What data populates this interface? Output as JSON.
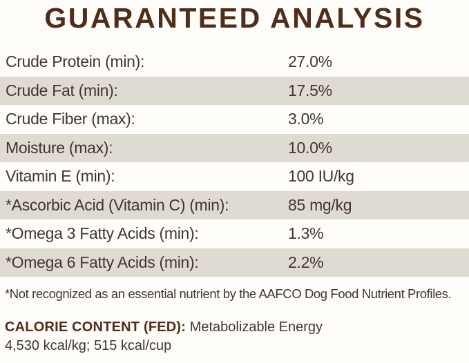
{
  "title": "GUARANTEED ANALYSIS",
  "colors": {
    "heading_brown": "#4f2d1a",
    "body_text": "#42362e",
    "shaded_row_bg": "#dfdad2",
    "page_bg": "#fffdfa"
  },
  "analysis_table": {
    "rows": [
      {
        "label": "Crude Protein (min):",
        "value": "27.0%",
        "shaded": false
      },
      {
        "label": "Crude Fat (min):",
        "value": "17.5%",
        "shaded": true
      },
      {
        "label": "Crude Fiber (max):",
        "value": "3.0%",
        "shaded": false
      },
      {
        "label": "Moisture (max):",
        "value": "10.0%",
        "shaded": true
      },
      {
        "label": "Vitamin E (min):",
        "value": "100 IU/kg",
        "shaded": false
      },
      {
        "label": "*Ascorbic Acid (Vitamin C) (min):",
        "value": "85 mg/kg",
        "shaded": true
      },
      {
        "label": "*Omega 3 Fatty Acids (min):",
        "value": "1.3%",
        "shaded": false
      },
      {
        "label": "*Omega 6 Fatty Acids (min):",
        "value": "2.2%",
        "shaded": true
      }
    ]
  },
  "footnote": "*Not recognized as an essential nutrient by the AAFCO Dog Food Nutrient Profiles.",
  "calorie_content": {
    "heading": "CALORIE CONTENT (FED):",
    "subtitle": "Metabolizable Energy",
    "values_line": "4,530 kcal/kg; 515 kcal/cup"
  }
}
